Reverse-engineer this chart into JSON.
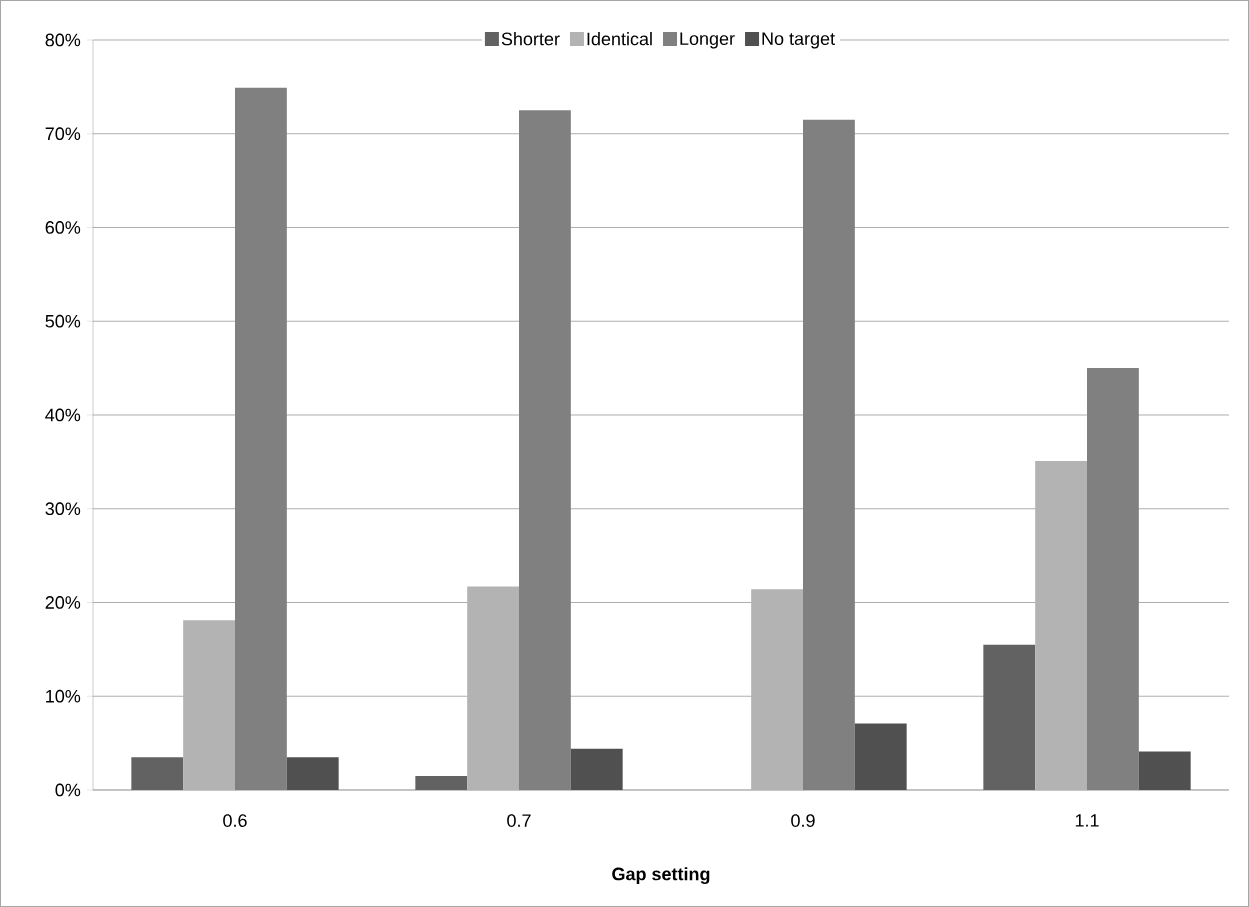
{
  "chart_data": {
    "type": "bar",
    "xlabel": "Gap setting",
    "categories": [
      "0.6",
      "0.7",
      "0.9",
      "1.1"
    ],
    "series": [
      {
        "name": "Shorter",
        "color": "#626262",
        "values": [
          3.5,
          1.5,
          0,
          15.5
        ]
      },
      {
        "name": "Identical",
        "color": "#b3b3b3",
        "values": [
          18.1,
          21.7,
          21.4,
          35.1
        ]
      },
      {
        "name": "Longer",
        "color": "#808080",
        "values": [
          74.9,
          72.5,
          71.5,
          45.0
        ]
      },
      {
        "name": "No target",
        "color": "#505050",
        "values": [
          3.5,
          4.4,
          7.1,
          4.1
        ]
      }
    ],
    "ylim": [
      0,
      80
    ],
    "yticks": [
      {
        "value": 0,
        "label": "0%"
      },
      {
        "value": 10,
        "label": "10%"
      },
      {
        "value": 20,
        "label": "20%"
      },
      {
        "value": 30,
        "label": "30%"
      },
      {
        "value": 40,
        "label": "40%"
      },
      {
        "value": 50,
        "label": "50%"
      },
      {
        "value": 60,
        "label": "60%"
      },
      {
        "value": 70,
        "label": "70%"
      },
      {
        "value": 80,
        "label": "80%"
      }
    ],
    "grid": "y",
    "legend": "top"
  }
}
